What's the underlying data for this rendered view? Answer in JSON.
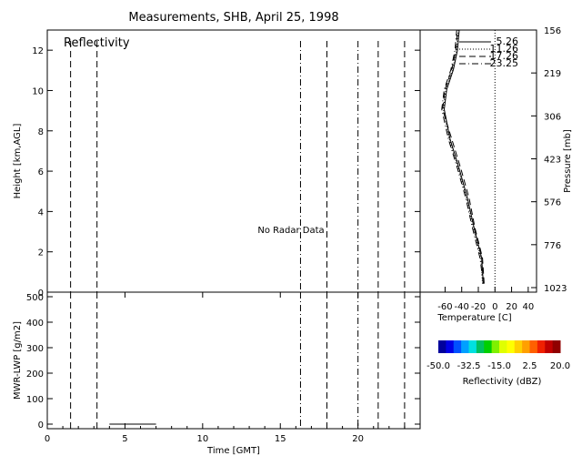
{
  "title": "Measurements, SHB, April 25, 1998",
  "chart_data": [
    {
      "type": "line",
      "panel": "reflectivity",
      "title": "Reflectivity",
      "annotation": "No Radar Data",
      "xlabel": "",
      "ylabel": "Height [km,AGL]",
      "xlim": [
        0,
        24
      ],
      "ylim": [
        0,
        13
      ],
      "yticks": [
        0,
        2,
        4,
        6,
        8,
        10,
        12
      ],
      "vertical_lines": [
        {
          "x": 1.5,
          "style": "dashed"
        },
        {
          "x": 3.2,
          "style": "dashed"
        },
        {
          "x": 16.3,
          "style": "dash-dot"
        },
        {
          "x": 18.0,
          "style": "dashed"
        },
        {
          "x": 20.0,
          "style": "dash-dot"
        },
        {
          "x": 21.3,
          "style": "dashed"
        },
        {
          "x": 23.0,
          "style": "dashed"
        }
      ]
    },
    {
      "type": "line",
      "panel": "liquid-water-path",
      "xlabel": "Time [GMT]",
      "ylabel": "MWR-LWP [g/m2]",
      "xlim": [
        0,
        24
      ],
      "ylim": [
        0,
        500
      ],
      "xticks": [
        0,
        5,
        10,
        15,
        20
      ],
      "yticks": [
        0,
        100,
        200,
        300,
        400,
        500
      ],
      "vertical_lines": [
        {
          "x": 1.5,
          "style": "dashed"
        },
        {
          "x": 3.2,
          "style": "dashed"
        },
        {
          "x": 16.3,
          "style": "dash-dot"
        },
        {
          "x": 18.0,
          "style": "dashed"
        },
        {
          "x": 20.0,
          "style": "dash-dot"
        },
        {
          "x": 21.3,
          "style": "dashed"
        },
        {
          "x": 23.0,
          "style": "dashed"
        }
      ],
      "series": [
        {
          "values": [
            [
              4.0,
              0
            ],
            [
              5.0,
              0
            ],
            [
              6.0,
              0
            ],
            [
              7.0,
              0
            ]
          ]
        }
      ]
    },
    {
      "type": "line",
      "panel": "temperature-profile",
      "xlabel": "Temperature [C]",
      "ylabel": "Pressure [mb]",
      "xlim": [
        -90,
        50
      ],
      "ylim": [
        0,
        13
      ],
      "xticks": [
        -60,
        -40,
        -20,
        0,
        20,
        40
      ],
      "right_axis_labels": [
        "1023",
        "776",
        "576",
        "423",
        "306",
        "219",
        "156"
      ],
      "zero_line": 0,
      "series": [
        {
          "name": "5.26",
          "style": "solid",
          "values": [
            [
              -14,
              0.2
            ],
            [
              -16,
              1.5
            ],
            [
              -25,
              3
            ],
            [
              -33,
              4.5
            ],
            [
              -43,
              6
            ],
            [
              -54,
              7.5
            ],
            [
              -61,
              9
            ],
            [
              -58,
              10
            ],
            [
              -50,
              11
            ],
            [
              -45,
              12
            ],
            [
              -43,
              13
            ]
          ]
        },
        {
          "name": "11.26",
          "style": "dotted",
          "values": [
            [
              -15,
              0.2
            ],
            [
              -17,
              1.5
            ],
            [
              -26,
              3
            ],
            [
              -34,
              4.5
            ],
            [
              -44,
              6
            ],
            [
              -55,
              7.5
            ],
            [
              -62,
              9
            ],
            [
              -59,
              10
            ],
            [
              -51,
              11
            ],
            [
              -46,
              12
            ],
            [
              -44,
              13
            ]
          ]
        },
        {
          "name": "17.26",
          "style": "dashed",
          "values": [
            [
              -13,
              0.2
            ],
            [
              -15,
              1.5
            ],
            [
              -24,
              3
            ],
            [
              -31,
              4.5
            ],
            [
              -41,
              6
            ],
            [
              -52,
              7.5
            ],
            [
              -63,
              9
            ],
            [
              -60,
              10
            ],
            [
              -52,
              11
            ],
            [
              -47,
              12
            ],
            [
              -45,
              13
            ]
          ]
        },
        {
          "name": "23.25",
          "style": "dash-dot",
          "values": [
            [
              -14,
              0.2
            ],
            [
              -18,
              1.5
            ],
            [
              -27,
              3
            ],
            [
              -35,
              4.5
            ],
            [
              -45,
              6
            ],
            [
              -56,
              7.5
            ],
            [
              -64,
              9
            ],
            [
              -61,
              10
            ],
            [
              -53,
              11
            ],
            [
              -48,
              12
            ],
            [
              -46,
              13
            ]
          ]
        }
      ]
    },
    {
      "type": "heatmap",
      "panel": "colorbar",
      "xlabel": "Reflectivity (dBZ)",
      "tick_labels": [
        "-50.0",
        "-32.5",
        "-15.0",
        "2.5",
        "20.0"
      ],
      "range": [
        -50,
        20
      ],
      "colors": [
        "#00009c",
        "#0000e6",
        "#0050ff",
        "#00a0ff",
        "#00e0e0",
        "#00c060",
        "#00d000",
        "#80f000",
        "#e0ff00",
        "#ffff00",
        "#ffd000",
        "#ffa000",
        "#ff6000",
        "#f02000",
        "#c00000",
        "#900000"
      ]
    }
  ]
}
